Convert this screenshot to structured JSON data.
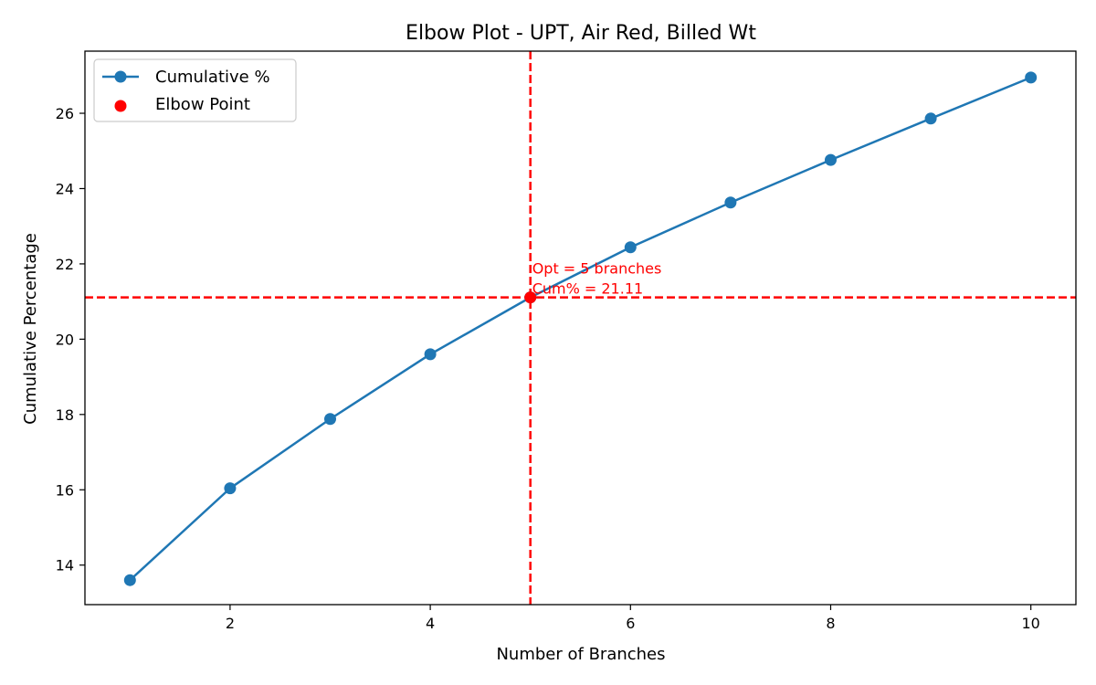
{
  "chart_data": {
    "type": "line",
    "title": "Elbow Plot - UPT, Air Red, Billed Wt",
    "xlabel": "Number of Branches",
    "ylabel": "Cumulative Percentage",
    "xlim": [
      0.55,
      10.45
    ],
    "ylim": [
      12.95,
      27.65
    ],
    "xticks": [
      2,
      4,
      6,
      8,
      10
    ],
    "yticks": [
      14,
      16,
      18,
      20,
      22,
      24,
      26
    ],
    "grid": false,
    "legend_position": "top-left",
    "series": [
      {
        "name": "Cumulative %",
        "color": "#1f77b4",
        "marker": "circle",
        "x": [
          1,
          2,
          3,
          4,
          5,
          6,
          7,
          8,
          9,
          10
        ],
        "y": [
          13.6,
          16.04,
          17.88,
          19.6,
          21.11,
          22.44,
          23.63,
          24.76,
          25.86,
          26.95
        ]
      }
    ],
    "elbow_point": {
      "name": "Elbow Point",
      "x": 5,
      "y": 21.11,
      "color": "#ff0000"
    },
    "reference_lines": {
      "vertical_x": 5,
      "horizontal_y": 21.11,
      "color": "#ff0000",
      "style": "dashed"
    },
    "annotation": {
      "line1": "Opt = 5 branches",
      "line2": "Cum% = 21.11",
      "color": "#ff0000"
    }
  }
}
